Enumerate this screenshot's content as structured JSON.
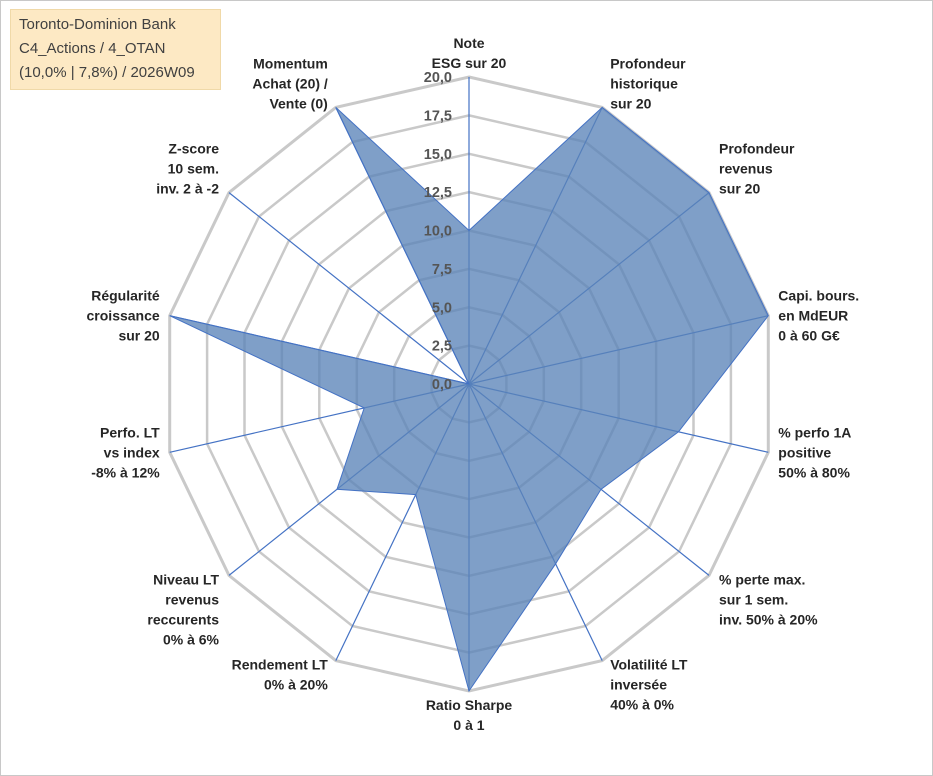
{
  "info_box": {
    "line1": "Toronto-Dominion Bank",
    "line2": "C4_Actions / 4_OTAN",
    "line3": "(10,0% | 7,8%) / 2026W09"
  },
  "colors": {
    "fill": "#5b84b8",
    "fill_opacity": 0.78,
    "series_line": "#4472c4",
    "grid": "#c9c9c9",
    "spoke": "#4472c4"
  },
  "chart_data": {
    "type": "radar",
    "title": "",
    "rmin": 0,
    "rmax": 20,
    "ticks": [
      "0,0",
      "2,5",
      "5,0",
      "7,5",
      "10,0",
      "12,5",
      "15,0",
      "17,5",
      "20,0"
    ],
    "tick_values": [
      0,
      2.5,
      5,
      7.5,
      10,
      12.5,
      15,
      17.5,
      20
    ],
    "categories": [
      [
        "Note",
        "ESG sur 20"
      ],
      [
        "Profondeur",
        "historique",
        "sur 20"
      ],
      [
        "Profondeur",
        "revenus",
        "sur 20"
      ],
      [
        "Capi. bours.",
        "en MdEUR",
        "0 à 60 G€"
      ],
      [
        "% perfo 1A",
        "positive",
        "50% à 80%"
      ],
      [
        "% perte max.",
        "sur 1 sem.",
        "inv. 50% à 20%"
      ],
      [
        "Volatilité LT",
        "inversée",
        "40% à 0%"
      ],
      [
        "Ratio Sharpe",
        "0 à 1"
      ],
      [
        "Rendement LT",
        "0% à 20%"
      ],
      [
        "Niveau LT",
        "revenus",
        "reccurents",
        "0% à 6%"
      ],
      [
        "Perfo. LT",
        "vs index",
        "-8% à 12%"
      ],
      [
        "Régularité",
        "croissance",
        "sur 20"
      ],
      [
        "Z-score",
        "10 sem.",
        "inv. 2 à -2"
      ],
      [
        "Momentum",
        "Achat (20) /",
        "Vente (0)"
      ]
    ],
    "series": [
      {
        "name": "Toronto-Dominion Bank",
        "values": [
          10,
          20,
          20,
          20,
          14,
          11,
          13,
          20,
          8,
          11,
          7,
          20,
          0,
          20
        ]
      }
    ]
  }
}
